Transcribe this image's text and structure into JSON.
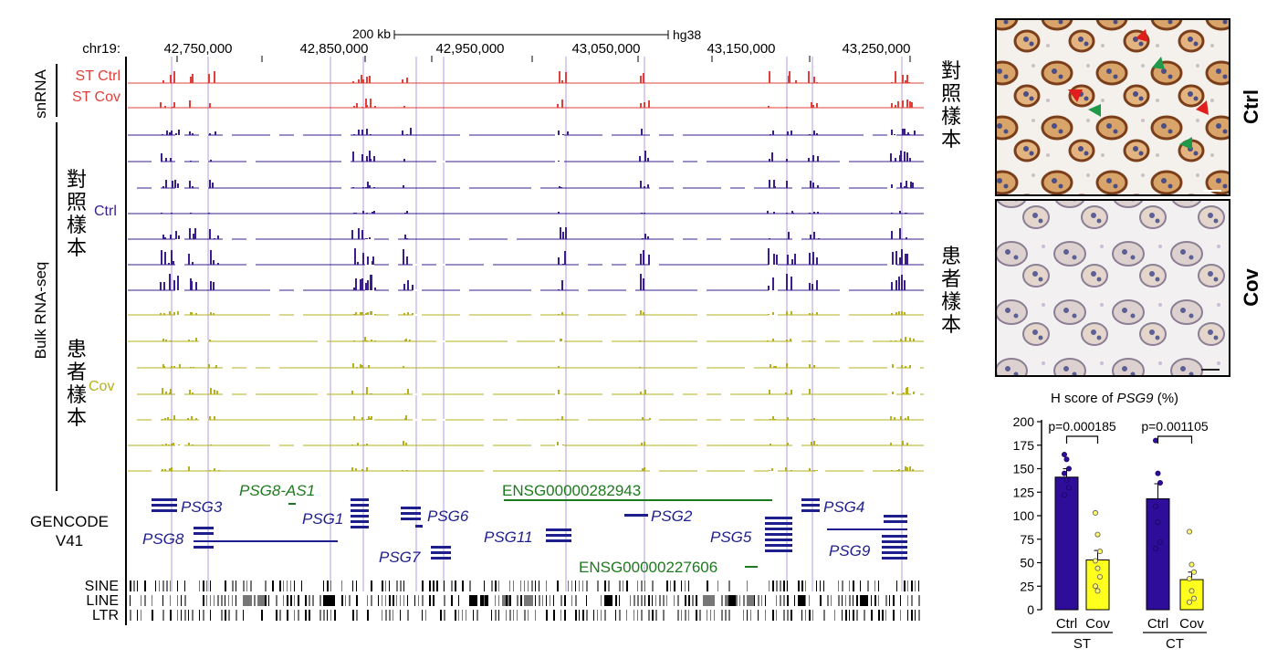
{
  "browser": {
    "scale_label": "200 kb",
    "assembly": "hg38",
    "chrom_label": "chr19:",
    "positions": [
      "42,750,000",
      "42,850,000",
      "42,950,000",
      "43,050,000",
      "43,150,000",
      "43,250,000"
    ],
    "colors": {
      "snrna": "#e0403a",
      "ctrl": "#3a1e8c",
      "cov": "#b5b11e",
      "gene_blue": "#1e1e8c",
      "gene_green": "#1e7a1e",
      "guide": "#b49be6"
    }
  },
  "track_groups": {
    "snrna": "snRNA",
    "snrna_ctrl": "ST Ctrl",
    "snrna_cov": "ST Cov",
    "bulk": "Bulk RNA-seq",
    "bulk_ctrl_cn": [
      "對",
      "照",
      "樣",
      "本"
    ],
    "bulk_ctrl": "Ctrl",
    "bulk_cov_cn": [
      "患",
      "者",
      "樣",
      "本"
    ],
    "bulk_cov": "Cov",
    "snrna_cn": [
      "對",
      "照",
      "樣",
      "本"
    ],
    "cov_cn": [
      "患",
      "者",
      "樣",
      "本"
    ]
  },
  "gencode": {
    "title_line1": "GENCODE",
    "title_line2": "V41",
    "genes": [
      "PSG3",
      "PSG8-AS1",
      "ENSG00000282943",
      "PSG4",
      "PSG1",
      "PSG6",
      "PSG2",
      "PSG8",
      "PSG11",
      "PSG5",
      "PSG9",
      "PSG7",
      "ENSG00000227606"
    ]
  },
  "repeats": [
    "SINE",
    "LINE",
    "LTR"
  ],
  "micrographs": {
    "ctrl_label": "Ctrl",
    "cov_label": "Cov"
  },
  "chart_data": {
    "type": "bar",
    "title": "H score of PSG9 (%)",
    "title_prefix": "H score of ",
    "title_gene": "PSG9",
    "title_suffix": " (%)",
    "groups": [
      "ST",
      "CT"
    ],
    "categories": [
      "Ctrl",
      "Cov",
      "Ctrl",
      "Cov"
    ],
    "ylim": [
      0,
      200
    ],
    "yticks": [
      "0",
      "25",
      "50",
      "75",
      "100",
      "125",
      "150",
      "175",
      "200"
    ],
    "series": [
      {
        "group": "ST",
        "name": "Ctrl",
        "value": 141,
        "sem": 9,
        "color": "#2e0d9a",
        "points": [
          165,
          160,
          150,
          145,
          138,
          130,
          122
        ]
      },
      {
        "group": "ST",
        "name": "Cov",
        "value": 53,
        "sem": 10,
        "color": "#ffff1e",
        "points": [
          103,
          80,
          62,
          52,
          44,
          35,
          25,
          20
        ]
      },
      {
        "group": "CT",
        "name": "Ctrl",
        "value": 118,
        "sem": 16,
        "color": "#2e0d9a",
        "points": [
          180,
          145,
          135,
          110,
          93,
          72,
          65
        ]
      },
      {
        "group": "CT",
        "name": "Cov",
        "value": 32,
        "sem": 8,
        "color": "#ffff1e",
        "points": [
          83,
          48,
          40,
          33,
          20,
          12,
          8
        ]
      }
    ],
    "pvalues": [
      "p=0.000185",
      "p=0.001105"
    ]
  }
}
